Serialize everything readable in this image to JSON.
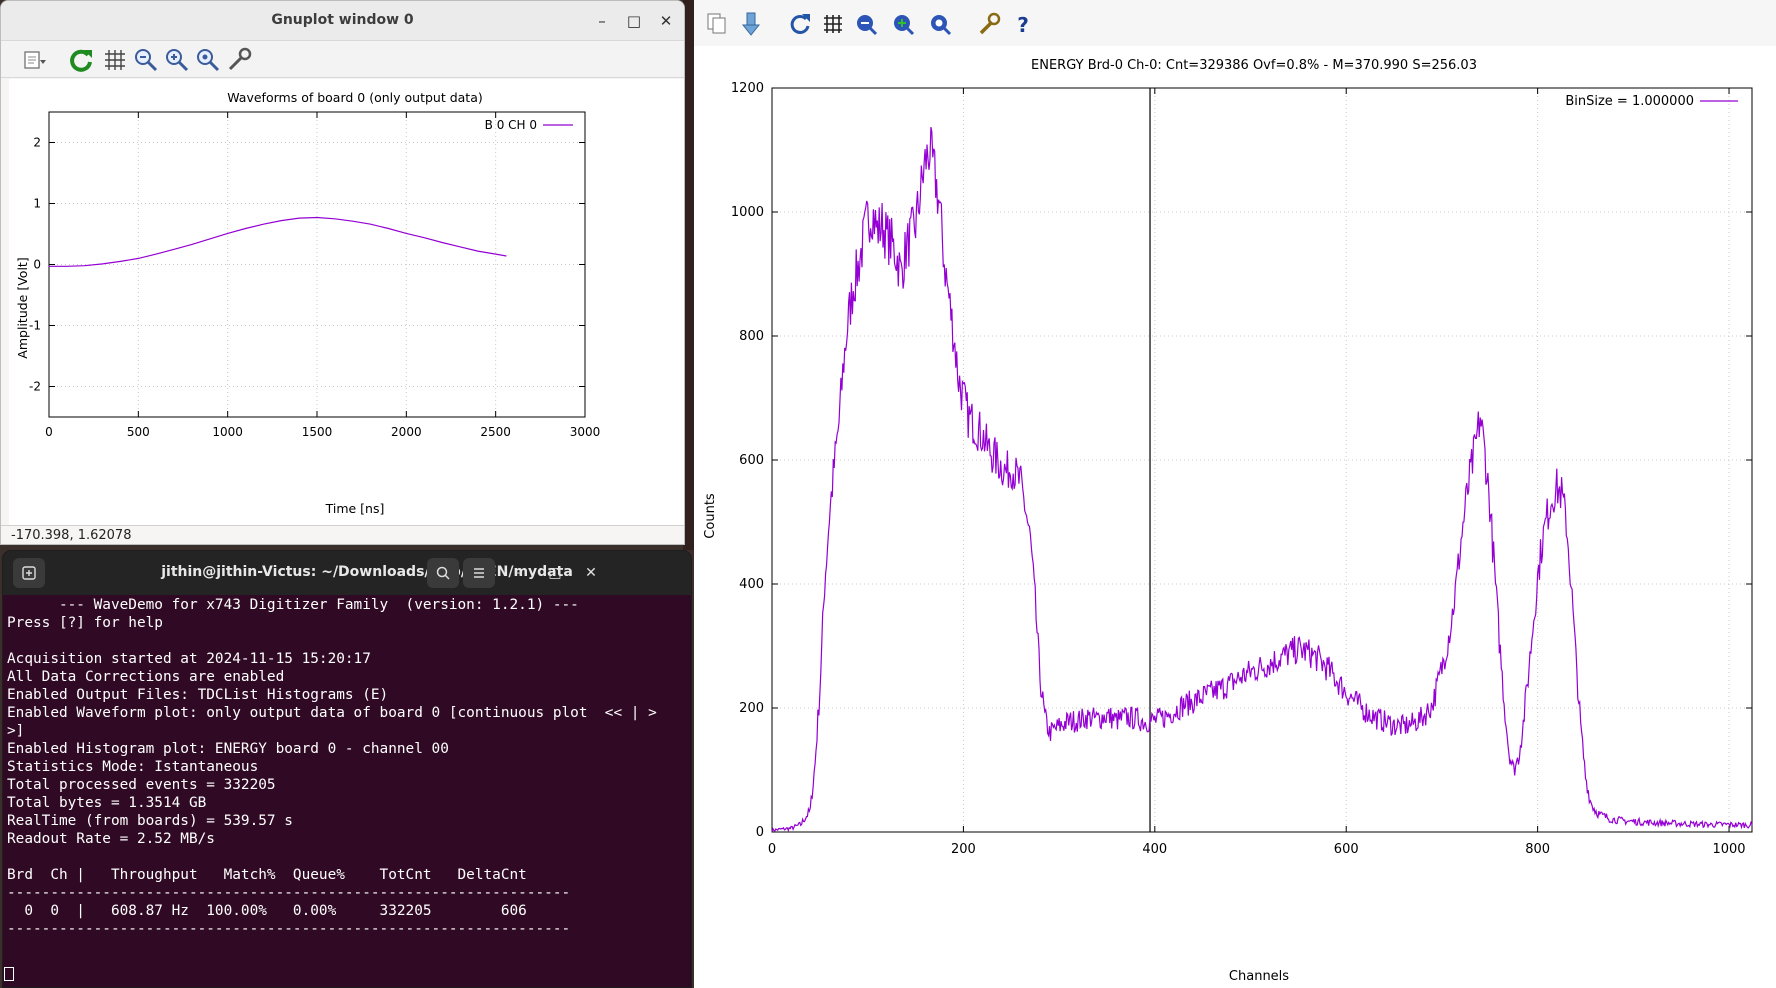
{
  "gnuplot_window": {
    "title": "Gnuplot window 0",
    "window_controls": {
      "minimize": "–",
      "maximize": "□",
      "close": "✕"
    },
    "toolbar_icons": [
      "copy-icon",
      "replot-icon",
      "grid-icon",
      "zoom-previous-icon",
      "zoom-next-icon",
      "autoscale-icon",
      "options-icon"
    ],
    "status_text": "-170.398,  1.62078",
    "chart_data": {
      "type": "line",
      "title": "Waveforms of board 0 (only output data)",
      "xlabel": "Time [ns]",
      "ylabel": "Amplitude [Volt]",
      "xlim": [
        0,
        3000
      ],
      "ylim": [
        -2.5,
        2.5
      ],
      "xticks": [
        0,
        500,
        1000,
        1500,
        2000,
        2500,
        3000
      ],
      "yticks": [
        -2,
        -1,
        0,
        1,
        2
      ],
      "grid": true,
      "legend_position": "top-right",
      "series_color": "#9400d3",
      "series": [
        {
          "name": "B 0 CH 0",
          "x": [
            0,
            100,
            200,
            300,
            400,
            500,
            600,
            700,
            800,
            900,
            1000,
            1100,
            1200,
            1300,
            1400,
            1500,
            1600,
            1700,
            1800,
            1900,
            2000,
            2100,
            2200,
            2300,
            2400,
            2500,
            2560
          ],
          "y": [
            -0.03,
            -0.03,
            -0.02,
            0.01,
            0.05,
            0.1,
            0.17,
            0.25,
            0.33,
            0.42,
            0.51,
            0.59,
            0.66,
            0.72,
            0.76,
            0.77,
            0.75,
            0.71,
            0.66,
            0.59,
            0.51,
            0.44,
            0.36,
            0.29,
            0.22,
            0.17,
            0.14
          ]
        }
      ]
    }
  },
  "terminal_window": {
    "title": "jithin@jithin-Victus: ~/Downloads/tmp/CAEN/mydata",
    "lines": [
      "      --- WaveDemo for x743 Digitizer Family  (version: 1.2.1) ---",
      "Press [?] for help",
      "",
      "Acquisition started at 2024-11-15 15:20:17",
      "All Data Corrections are enabled",
      "Enabled Output Files: TDCList Histograms (E)",
      "Enabled Waveform plot: only output data of board 0 [continuous plot  << | >",
      ">]",
      "Enabled Histogram plot: ENERGY board 0 - channel 00",
      "Statistics Mode: Istantaneous",
      "Total processed events = 332205",
      "Total bytes = 1.3514 GB",
      "RealTime (from boards) = 539.57 s",
      "Readout Rate = 2.52 MB/s",
      "",
      "Brd  Ch |   Throughput   Match%  Queue%    TotCnt   DeltaCnt",
      "-----------------------------------------------------------------",
      "  0  0  |   608.87 Hz  100.00%   0.00%     332205        606",
      "-----------------------------------------------------------------"
    ]
  },
  "energy_window": {
    "toolbar_icons": [
      "copy-icon",
      "print-icon",
      "replot-icon",
      "grid-icon",
      "zoom-previous-icon",
      "zoom-next-icon",
      "autoscale-icon",
      "options-icon",
      "help-icon"
    ],
    "chart_data": {
      "type": "line",
      "title": "ENERGY Brd-0 Ch-0: Cnt=329386 Ovf=0.8% - M=370.990 S=256.03",
      "xlabel": "Channels",
      "ylabel": "Counts",
      "xlim": [
        0,
        1024
      ],
      "ylim": [
        0,
        1200
      ],
      "xticks": [
        0,
        200,
        400,
        600,
        800,
        1000
      ],
      "yticks": [
        0,
        200,
        400,
        600,
        800,
        1000,
        1200
      ],
      "grid": true,
      "legend_position": "top-right",
      "marker_line_x": 395,
      "series_color": "#9400d3",
      "series": [
        {
          "name": "BinSize = 1.000000",
          "x": [
            0,
            20,
            30,
            40,
            45,
            50,
            55,
            60,
            65,
            70,
            75,
            80,
            85,
            90,
            95,
            100,
            105,
            110,
            115,
            120,
            125,
            130,
            135,
            140,
            145,
            150,
            155,
            160,
            165,
            170,
            175,
            180,
            185,
            190,
            195,
            200,
            205,
            210,
            215,
            220,
            225,
            230,
            235,
            240,
            245,
            250,
            255,
            260,
            265,
            270,
            275,
            280,
            285,
            290,
            295,
            300,
            305,
            310,
            320,
            330,
            340,
            350,
            360,
            370,
            380,
            390,
            400,
            410,
            420,
            430,
            440,
            450,
            460,
            470,
            480,
            490,
            500,
            510,
            520,
            530,
            540,
            550,
            560,
            570,
            580,
            590,
            600,
            610,
            620,
            630,
            640,
            650,
            660,
            670,
            680,
            690,
            700,
            705,
            710,
            715,
            720,
            725,
            730,
            735,
            740,
            745,
            750,
            755,
            760,
            765,
            770,
            775,
            780,
            785,
            790,
            795,
            800,
            805,
            810,
            815,
            820,
            825,
            830,
            835,
            840,
            845,
            850,
            855,
            860,
            865,
            870,
            875,
            880,
            890,
            900,
            920,
            940,
            960,
            980,
            1000,
            1024
          ],
          "y": [
            3,
            6,
            12,
            35,
            110,
            230,
            400,
            510,
            590,
            660,
            760,
            830,
            880,
            910,
            950,
            990,
            1000,
            970,
            980,
            960,
            950,
            930,
            900,
            940,
            960,
            980,
            1030,
            1080,
            1100,
            1060,
            1010,
            920,
            860,
            800,
            730,
            700,
            670,
            660,
            650,
            640,
            620,
            610,
            600,
            590,
            580,
            590,
            575,
            560,
            520,
            470,
            370,
            250,
            185,
            160,
            165,
            170,
            175,
            178,
            180,
            185,
            182,
            188,
            180,
            185,
            183,
            178,
            180,
            185,
            195,
            205,
            210,
            218,
            225,
            232,
            240,
            250,
            258,
            265,
            272,
            280,
            288,
            295,
            290,
            280,
            265,
            245,
            225,
            210,
            195,
            185,
            178,
            172,
            170,
            175,
            185,
            205,
            265,
            300,
            340,
            400,
            470,
            530,
            580,
            620,
            670,
            610,
            530,
            420,
            310,
            210,
            130,
            100,
            120,
            175,
            250,
            330,
            410,
            470,
            510,
            540,
            555,
            545,
            500,
            400,
            280,
            170,
            90,
            50,
            35,
            28,
            25,
            22,
            20,
            18,
            17,
            15,
            14,
            13,
            12,
            12,
            11
          ]
        }
      ]
    }
  }
}
